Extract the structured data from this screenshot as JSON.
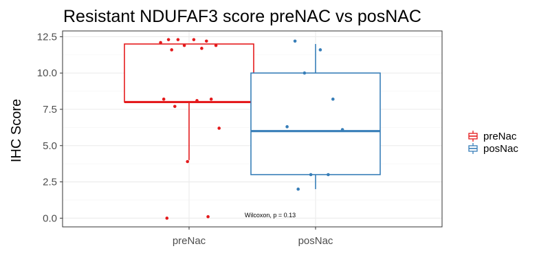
{
  "chart_data": {
    "type": "box",
    "title": "Resistant NDUFAF3 score preNAC vs posNAC",
    "xlabel": "",
    "ylabel": "IHC Score",
    "ylim": [
      -0.6,
      12.9
    ],
    "yticks": [
      0.0,
      2.5,
      5.0,
      7.5,
      10.0,
      12.5
    ],
    "ytick_labels": [
      "0.0",
      "2.5",
      "5.0",
      "7.5",
      "10.0",
      "12.5"
    ],
    "categories": [
      "preNac",
      "posNac"
    ],
    "legend_title": "",
    "legend_position": "right",
    "grid": true,
    "annotation": "Wilcoxon, p = 0.13",
    "series": [
      {
        "name": "preNac",
        "color": "#e41a1c",
        "box": {
          "min": 4,
          "q1": 8,
          "median": 8,
          "q3": 12,
          "max": 12
        },
        "points": [
          12.3,
          12.3,
          12.3,
          12.2,
          12.1,
          11.9,
          11.9,
          11.7,
          11.6,
          8.2,
          8.2,
          8.1,
          7.7,
          6.2,
          3.9,
          0.1,
          0.0
        ]
      },
      {
        "name": "posNac",
        "color": "#377eb8",
        "box": {
          "min": 2,
          "q1": 3,
          "median": 6,
          "q3": 10,
          "max": 12
        },
        "points": [
          12.2,
          11.6,
          10.0,
          8.2,
          6.3,
          6.1,
          3.0,
          3.0,
          2.0
        ]
      }
    ]
  }
}
